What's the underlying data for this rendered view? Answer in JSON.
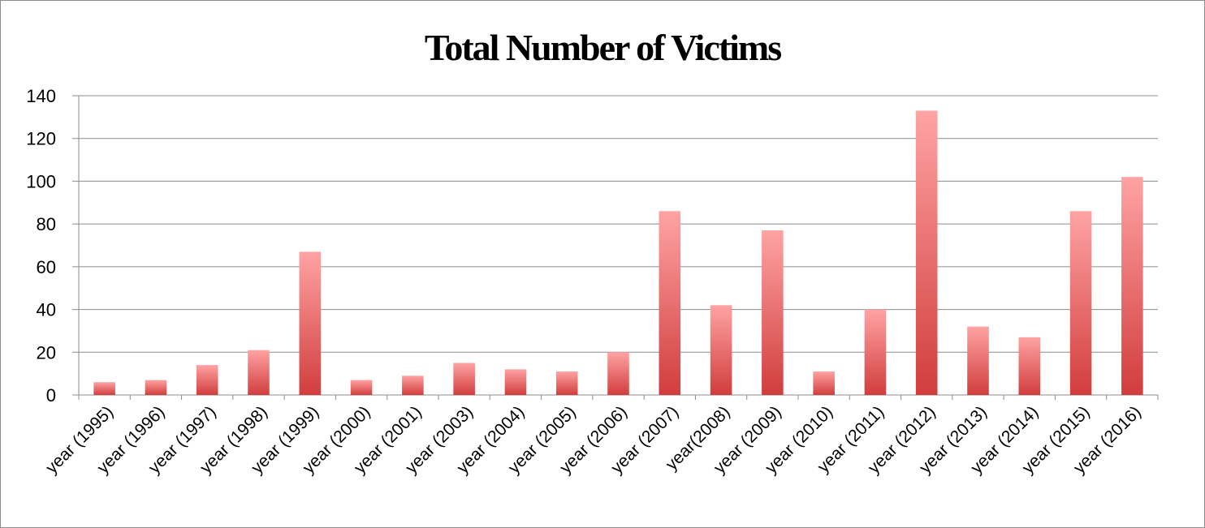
{
  "chart_data": {
    "type": "bar",
    "title": "Total Number of Victims",
    "xlabel": "",
    "ylabel": "",
    "ylim": [
      0,
      140
    ],
    "yticks": [
      0,
      20,
      40,
      60,
      80,
      100,
      120,
      140
    ],
    "grid": true,
    "legend": "none",
    "categories": [
      "year (1995)",
      "year (1996)",
      "year (1997)",
      "year (1998)",
      "year (1999)",
      "year (2000)",
      "year (2001)",
      "year (2003)",
      "year (2004)",
      "year (2005)",
      "year (2006)",
      "year (2007)",
      "year(2008)",
      "year (2009)",
      "year (2010)",
      "year (2011)",
      "year (2012)",
      "year (2013)",
      "year (2014)",
      "year (2015)",
      "year (2016)"
    ],
    "values": [
      6,
      7,
      14,
      21,
      67,
      7,
      9,
      15,
      12,
      11,
      20,
      86,
      42,
      77,
      11,
      40,
      133,
      32,
      27,
      86,
      102
    ],
    "colors": {
      "bar_top": "#ffa3a3",
      "bar_bottom": "#d13d3d",
      "grid": "#8c8c8c"
    }
  }
}
